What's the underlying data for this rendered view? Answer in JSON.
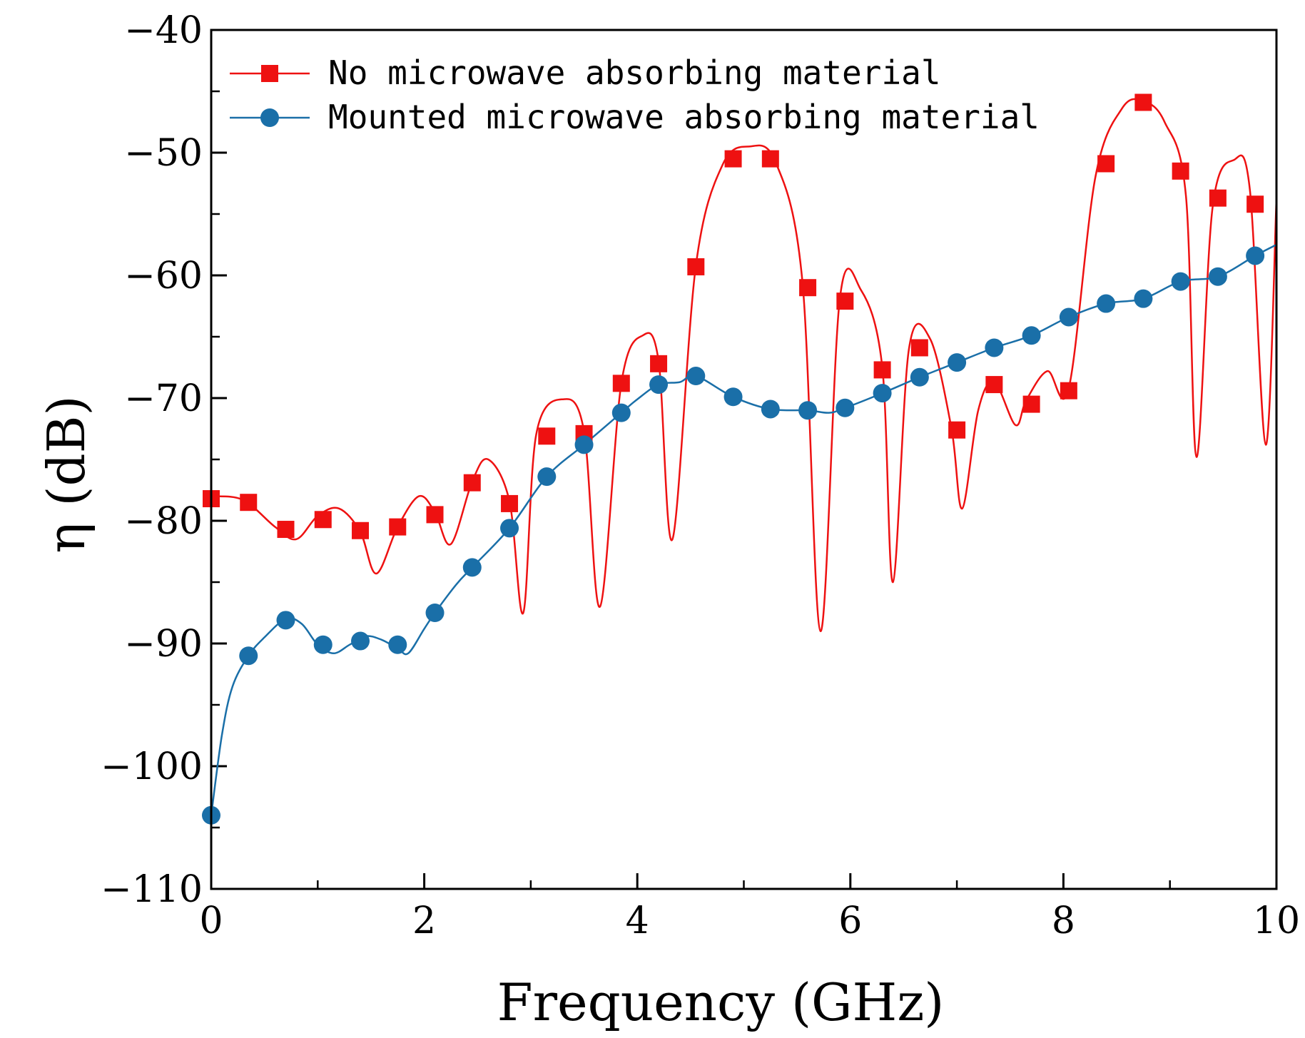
{
  "chart_data": {
    "type": "line",
    "title": "",
    "xlabel": "Frequency (GHz)",
    "ylabel": "η (dB)",
    "xlim": [
      0,
      10
    ],
    "ylim": [
      -110,
      -40
    ],
    "xticks": [
      "0",
      "2",
      "4",
      "6",
      "8",
      "10"
    ],
    "yticks": [
      "−110",
      "−100",
      "−90",
      "−80",
      "−70",
      "−60",
      "−50",
      "−40"
    ],
    "xtick_values": [
      0,
      2,
      4,
      6,
      8,
      10
    ],
    "ytick_values": [
      -110,
      -100,
      -90,
      -80,
      -70,
      -60,
      -50,
      -40
    ],
    "legend_position": "top-left",
    "series": [
      {
        "name": "No microwave absorbing material",
        "color": "#ee1111",
        "marker": "square",
        "markers": {
          "x": [
            0.0,
            0.35,
            0.7,
            1.05,
            1.4,
            1.75,
            2.1,
            2.45,
            2.8,
            3.15,
            3.5,
            3.85,
            4.2,
            4.55,
            4.9,
            5.25,
            5.6,
            5.95,
            6.3,
            6.65,
            7.0,
            7.35,
            7.7,
            8.05,
            8.4,
            8.75,
            9.1,
            9.45,
            9.8
          ],
          "y": [
            -78.2,
            -78.5,
            -80.7,
            -79.9,
            -80.8,
            -80.5,
            -79.5,
            -76.9,
            -78.6,
            -73.1,
            -72.9,
            -68.8,
            -67.2,
            -59.3,
            -50.5,
            -50.5,
            -61.0,
            -62.1,
            -67.7,
            -65.9,
            -72.6,
            -68.9,
            -70.5,
            -69.4,
            -50.9,
            -45.9,
            -51.5,
            -53.7,
            -54.2
          ]
        },
        "curve": {
          "x": [
            0.0,
            0.3,
            0.6,
            0.8,
            1.0,
            1.2,
            1.4,
            1.55,
            1.75,
            1.95,
            2.1,
            2.25,
            2.45,
            2.6,
            2.8,
            2.93,
            3.05,
            3.3,
            3.5,
            3.65,
            3.85,
            4.05,
            4.2,
            4.33,
            4.55,
            4.8,
            5.05,
            5.3,
            5.55,
            5.72,
            5.9,
            6.1,
            6.3,
            6.4,
            6.55,
            6.75,
            6.95,
            7.05,
            7.2,
            7.35,
            7.55,
            7.65,
            7.85,
            8.05,
            8.3,
            8.55,
            8.75,
            8.95,
            9.15,
            9.25,
            9.4,
            9.6,
            9.75,
            9.9,
            10.0
          ],
          "y": [
            -78.0,
            -78.3,
            -80.5,
            -81.5,
            -79.6,
            -79.0,
            -80.9,
            -84.3,
            -80.5,
            -78.0,
            -79.3,
            -81.9,
            -76.8,
            -75.0,
            -78.4,
            -87.5,
            -73.0,
            -70.1,
            -72.7,
            -87.0,
            -68.8,
            -64.9,
            -67.0,
            -81.5,
            -59.2,
            -51.0,
            -49.5,
            -50.8,
            -60.5,
            -89.0,
            -62.0,
            -61.2,
            -67.5,
            -85.0,
            -66.0,
            -65.2,
            -72.5,
            -79.0,
            -71.0,
            -68.7,
            -72.2,
            -70.2,
            -67.8,
            -69.2,
            -52.0,
            -46.4,
            -45.8,
            -47.5,
            -53.5,
            -74.8,
            -54.5,
            -50.6,
            -53.0,
            -73.8,
            -53.8
          ]
        }
      },
      {
        "name": "Mounted microwave absorbing material",
        "color": "#1a6fa8",
        "marker": "circle",
        "markers": {
          "x": [
            0.0,
            0.35,
            0.7,
            1.05,
            1.4,
            1.75,
            2.1,
            2.45,
            2.8,
            3.15,
            3.5,
            3.85,
            4.2,
            4.55,
            4.9,
            5.25,
            5.6,
            5.95,
            6.3,
            6.65,
            7.0,
            7.35,
            7.7,
            8.05,
            8.4,
            8.75,
            9.1,
            9.45,
            9.8
          ],
          "y": [
            -104.0,
            -91.0,
            -88.1,
            -90.1,
            -89.8,
            -90.1,
            -87.5,
            -83.8,
            -80.6,
            -76.4,
            -73.8,
            -71.2,
            -68.9,
            -68.2,
            -69.9,
            -70.9,
            -71.0,
            -70.8,
            -69.6,
            -68.3,
            -67.1,
            -65.9,
            -64.9,
            -63.4,
            -62.3,
            -61.9,
            -60.5,
            -60.1,
            -58.4
          ]
        },
        "curve": {
          "x": [
            0.0,
            0.1,
            0.2,
            0.35,
            0.5,
            0.7,
            0.85,
            1.0,
            1.15,
            1.3,
            1.45,
            1.6,
            1.75,
            1.85,
            2.0,
            2.1,
            2.3,
            2.45,
            2.8,
            3.15,
            3.5,
            3.85,
            4.0,
            4.2,
            4.4,
            4.55,
            4.9,
            5.25,
            5.6,
            5.8,
            5.95,
            6.3,
            6.65,
            7.0,
            7.35,
            7.7,
            8.05,
            8.4,
            8.75,
            9.1,
            9.45,
            9.8,
            10.0
          ],
          "y": [
            -104.0,
            -97.5,
            -93.5,
            -91.0,
            -89.5,
            -88.0,
            -88.4,
            -90.1,
            -90.8,
            -90.1,
            -89.4,
            -89.7,
            -90.4,
            -90.8,
            -88.8,
            -87.5,
            -85.2,
            -83.8,
            -80.6,
            -76.4,
            -73.8,
            -71.2,
            -70.1,
            -68.9,
            -68.7,
            -68.2,
            -69.9,
            -70.9,
            -71.0,
            -71.2,
            -70.8,
            -69.6,
            -68.3,
            -67.1,
            -65.9,
            -64.9,
            -63.4,
            -62.3,
            -61.9,
            -60.5,
            -60.1,
            -58.4,
            -57.5
          ]
        }
      }
    ]
  }
}
